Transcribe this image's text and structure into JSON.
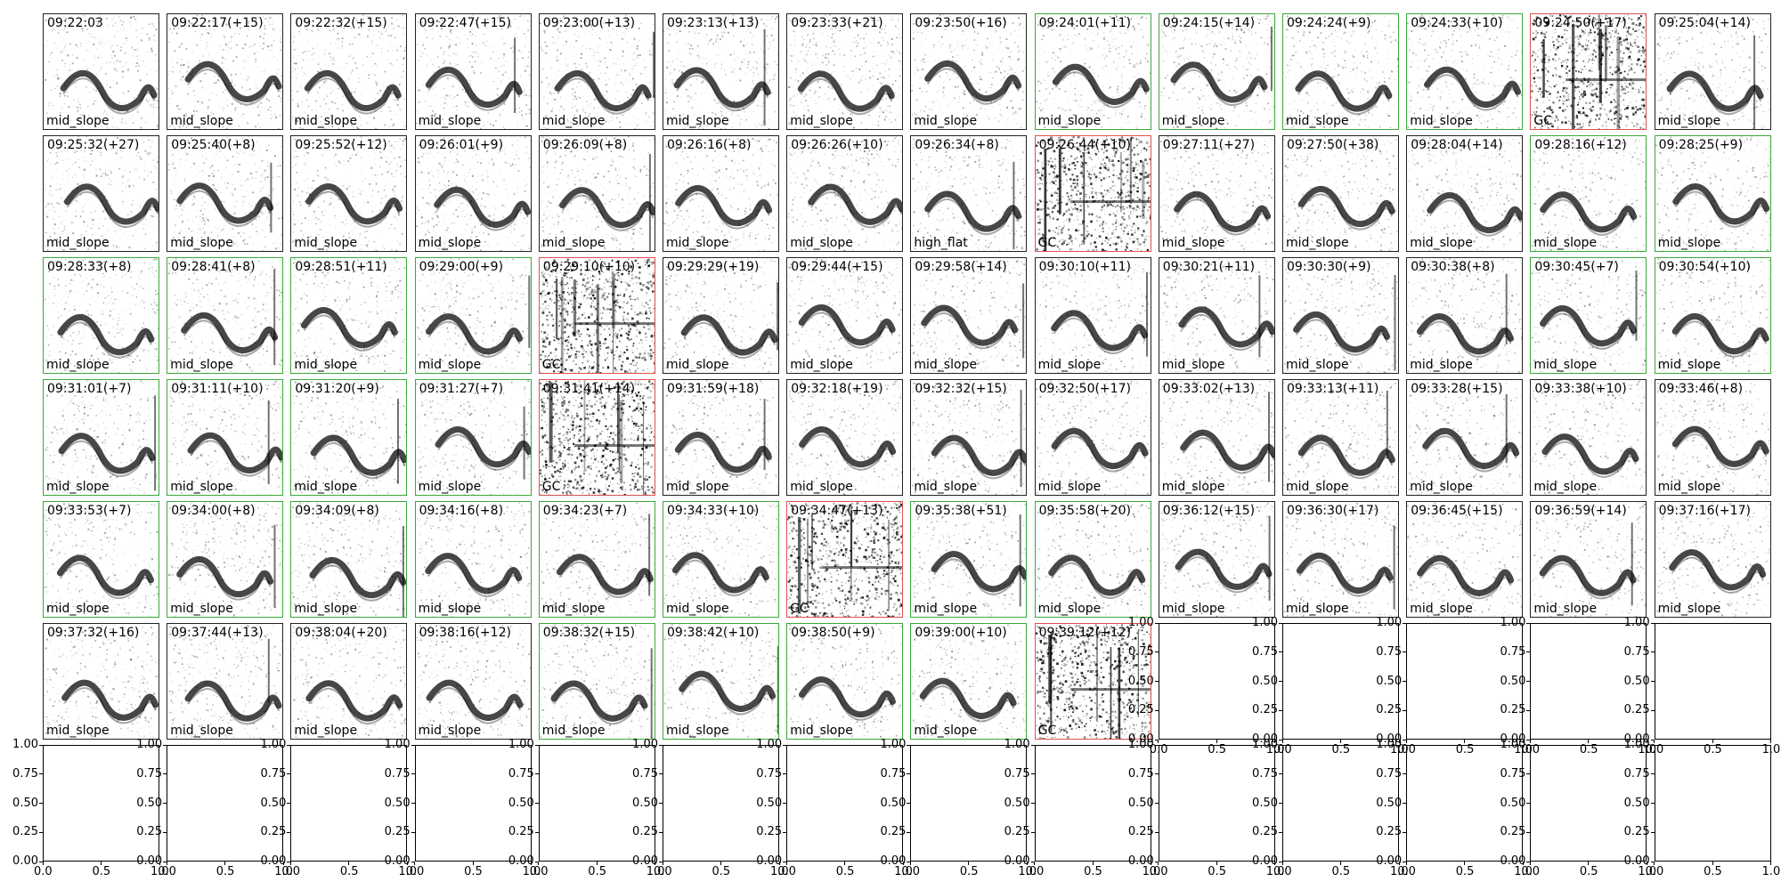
{
  "chart_data": {
    "type": "spectrogram_grid",
    "layout": {
      "columns": 14,
      "total_slots": 98
    },
    "panels": [
      {
        "time": "09:22:03",
        "label": "mid_slope",
        "status": "neutral"
      },
      {
        "time": "09:22:17(+15)",
        "label": "mid_slope",
        "status": "neutral"
      },
      {
        "time": "09:22:32(+15)",
        "label": "mid_slope",
        "status": "neutral"
      },
      {
        "time": "09:22:47(+15)",
        "label": "mid_slope",
        "status": "neutral"
      },
      {
        "time": "09:23:00(+13)",
        "label": "mid_slope",
        "status": "neutral"
      },
      {
        "time": "09:23:13(+13)",
        "label": "mid_slope",
        "status": "neutral"
      },
      {
        "time": "09:23:33(+21)",
        "label": "mid_slope",
        "status": "neutral"
      },
      {
        "time": "09:23:50(+16)",
        "label": "mid_slope",
        "status": "neutral"
      },
      {
        "time": "09:24:01(+11)",
        "label": "mid_slope",
        "status": "good"
      },
      {
        "time": "09:24:15(+14)",
        "label": "mid_slope",
        "status": "good"
      },
      {
        "time": "09:24:24(+9)",
        "label": "mid_slope",
        "status": "good"
      },
      {
        "time": "09:24:33(+10)",
        "label": "mid_slope",
        "status": "good"
      },
      {
        "time": "09:24:50(+17)",
        "label": "GC",
        "status": "bad"
      },
      {
        "time": "09:25:04(+14)",
        "label": "mid_slope",
        "status": "neutral"
      },
      {
        "time": "09:25:32(+27)",
        "label": "mid_slope",
        "status": "neutral"
      },
      {
        "time": "09:25:40(+8)",
        "label": "mid_slope",
        "status": "neutral"
      },
      {
        "time": "09:25:52(+12)",
        "label": "mid_slope",
        "status": "neutral"
      },
      {
        "time": "09:26:01(+9)",
        "label": "mid_slope",
        "status": "neutral"
      },
      {
        "time": "09:26:09(+8)",
        "label": "mid_slope",
        "status": "neutral"
      },
      {
        "time": "09:26:16(+8)",
        "label": "mid_slope",
        "status": "neutral"
      },
      {
        "time": "09:26:26(+10)",
        "label": "mid_slope",
        "status": "neutral"
      },
      {
        "time": "09:26:34(+8)",
        "label": "high_flat",
        "status": "neutral"
      },
      {
        "time": "09:26:44(+10)",
        "label": "GC",
        "status": "bad"
      },
      {
        "time": "09:27:11(+27)",
        "label": "mid_slope",
        "status": "neutral"
      },
      {
        "time": "09:27:50(+38)",
        "label": "mid_slope",
        "status": "neutral"
      },
      {
        "time": "09:28:04(+14)",
        "label": "mid_slope",
        "status": "neutral"
      },
      {
        "time": "09:28:16(+12)",
        "label": "mid_slope",
        "status": "good"
      },
      {
        "time": "09:28:25(+9)",
        "label": "mid_slope",
        "status": "good"
      },
      {
        "time": "09:28:33(+8)",
        "label": "mid_slope",
        "status": "good"
      },
      {
        "time": "09:28:41(+8)",
        "label": "mid_slope",
        "status": "good"
      },
      {
        "time": "09:28:51(+11)",
        "label": "mid_slope",
        "status": "good"
      },
      {
        "time": "09:29:00(+9)",
        "label": "mid_slope",
        "status": "good"
      },
      {
        "time": "09:29:10(+10)",
        "label": "GC",
        "status": "bad"
      },
      {
        "time": "09:29:29(+19)",
        "label": "mid_slope",
        "status": "neutral"
      },
      {
        "time": "09:29:44(+15)",
        "label": "mid_slope",
        "status": "neutral"
      },
      {
        "time": "09:29:58(+14)",
        "label": "mid_slope",
        "status": "neutral"
      },
      {
        "time": "09:30:10(+11)",
        "label": "mid_slope",
        "status": "neutral"
      },
      {
        "time": "09:30:21(+11)",
        "label": "mid_slope",
        "status": "neutral"
      },
      {
        "time": "09:30:30(+9)",
        "label": "mid_slope",
        "status": "neutral"
      },
      {
        "time": "09:30:38(+8)",
        "label": "mid_slope",
        "status": "neutral"
      },
      {
        "time": "09:30:45(+7)",
        "label": "mid_slope",
        "status": "good"
      },
      {
        "time": "09:30:54(+10)",
        "label": "mid_slope",
        "status": "good"
      },
      {
        "time": "09:31:01(+7)",
        "label": "mid_slope",
        "status": "good"
      },
      {
        "time": "09:31:11(+10)",
        "label": "mid_slope",
        "status": "good"
      },
      {
        "time": "09:31:20(+9)",
        "label": "mid_slope",
        "status": "good"
      },
      {
        "time": "09:31:27(+7)",
        "label": "mid_slope",
        "status": "good"
      },
      {
        "time": "09:31:41(+14)",
        "label": "GC",
        "status": "bad"
      },
      {
        "time": "09:31:59(+18)",
        "label": "mid_slope",
        "status": "neutral"
      },
      {
        "time": "09:32:18(+19)",
        "label": "mid_slope",
        "status": "neutral"
      },
      {
        "time": "09:32:32(+15)",
        "label": "mid_slope",
        "status": "neutral"
      },
      {
        "time": "09:32:50(+17)",
        "label": "mid_slope",
        "status": "neutral"
      },
      {
        "time": "09:33:02(+13)",
        "label": "mid_slope",
        "status": "neutral"
      },
      {
        "time": "09:33:13(+11)",
        "label": "mid_slope",
        "status": "neutral"
      },
      {
        "time": "09:33:28(+15)",
        "label": "mid_slope",
        "status": "neutral"
      },
      {
        "time": "09:33:38(+10)",
        "label": "mid_slope",
        "status": "neutral"
      },
      {
        "time": "09:33:46(+8)",
        "label": "mid_slope",
        "status": "neutral"
      },
      {
        "time": "09:33:53(+7)",
        "label": "mid_slope",
        "status": "good"
      },
      {
        "time": "09:34:00(+8)",
        "label": "mid_slope",
        "status": "good"
      },
      {
        "time": "09:34:09(+8)",
        "label": "mid_slope",
        "status": "good"
      },
      {
        "time": "09:34:16(+8)",
        "label": "mid_slope",
        "status": "good"
      },
      {
        "time": "09:34:23(+7)",
        "label": "mid_slope",
        "status": "good"
      },
      {
        "time": "09:34:33(+10)",
        "label": "mid_slope",
        "status": "good"
      },
      {
        "time": "09:34:47(+13)",
        "label": "GC",
        "status": "bad"
      },
      {
        "time": "09:35:38(+51)",
        "label": "mid_slope",
        "status": "good"
      },
      {
        "time": "09:35:58(+20)",
        "label": "mid_slope",
        "status": "good"
      },
      {
        "time": "09:36:12(+15)",
        "label": "mid_slope",
        "status": "neutral"
      },
      {
        "time": "09:36:30(+17)",
        "label": "mid_slope",
        "status": "neutral"
      },
      {
        "time": "09:36:45(+15)",
        "label": "mid_slope",
        "status": "neutral"
      },
      {
        "time": "09:36:59(+14)",
        "label": "mid_slope",
        "status": "neutral"
      },
      {
        "time": "09:37:16(+17)",
        "label": "mid_slope",
        "status": "neutral"
      },
      {
        "time": "09:37:32(+16)",
        "label": "mid_slope",
        "status": "neutral"
      },
      {
        "time": "09:37:44(+13)",
        "label": "mid_slope",
        "status": "neutral"
      },
      {
        "time": "09:38:04(+20)",
        "label": "mid_slope",
        "status": "neutral"
      },
      {
        "time": "09:38:16(+12)",
        "label": "mid_slope",
        "status": "neutral"
      },
      {
        "time": "09:38:32(+15)",
        "label": "mid_slope",
        "status": "good"
      },
      {
        "time": "09:38:42(+10)",
        "label": "mid_slope",
        "status": "good"
      },
      {
        "time": "09:38:50(+9)",
        "label": "mid_slope",
        "status": "good"
      },
      {
        "time": "09:39:00(+10)",
        "label": "mid_slope",
        "status": "good"
      },
      {
        "time": "09:39:12(+12)",
        "label": "GC",
        "status": "bad"
      }
    ],
    "empty_axes": {
      "x_ticks": [
        "0.0",
        "0.5",
        "1.0"
      ],
      "y_ticks": [
        "0.00",
        "0.25",
        "0.50",
        "0.75",
        "1.00"
      ],
      "xlim": [
        0,
        1
      ],
      "ylim": [
        0,
        1
      ]
    }
  },
  "colors": {
    "good": "#3aa83a",
    "bad": "#e05050",
    "neutral": "#222222"
  }
}
